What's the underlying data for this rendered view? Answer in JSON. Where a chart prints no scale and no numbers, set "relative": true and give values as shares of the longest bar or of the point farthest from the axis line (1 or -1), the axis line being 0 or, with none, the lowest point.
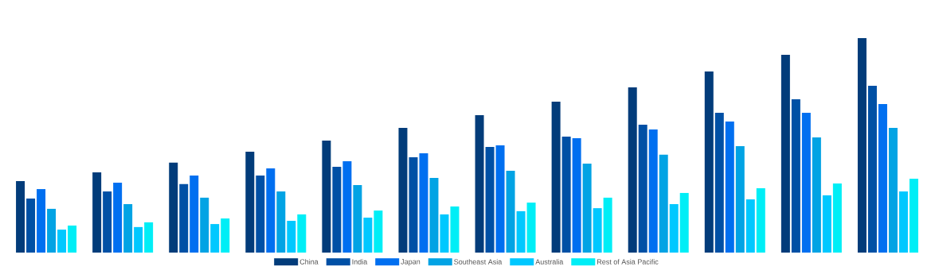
{
  "chart_data": {
    "type": "bar",
    "relative": true,
    "legend": "bottom",
    "categories": [
      null,
      null,
      null,
      null,
      null,
      null,
      null,
      null,
      null,
      null,
      null,
      null
    ],
    "series": [
      {
        "name": "China",
        "color": "#023c7a",
        "values": [
          0.333,
          0.374,
          0.419,
          0.47,
          0.522,
          0.581,
          0.641,
          0.704,
          0.77,
          0.844,
          0.922,
          1
        ]
      },
      {
        "name": "India",
        "color": "#0050a5",
        "values": [
          0.252,
          0.285,
          0.319,
          0.359,
          0.4,
          0.444,
          0.493,
          0.541,
          0.596,
          0.652,
          0.715,
          0.778
        ]
      },
      {
        "name": "Japan",
        "color": "#006ff0",
        "values": [
          0.296,
          0.326,
          0.359,
          0.393,
          0.426,
          0.463,
          0.5,
          0.533,
          0.574,
          0.611,
          0.652,
          0.693
        ]
      },
      {
        "name": "Southeast Asia",
        "color": "#02a3e4",
        "values": [
          0.204,
          0.226,
          0.256,
          0.285,
          0.315,
          0.348,
          0.381,
          0.415,
          0.456,
          0.496,
          0.537,
          0.581
        ]
      },
      {
        "name": "Australia",
        "color": "#00c8ff",
        "values": [
          0.107,
          0.119,
          0.133,
          0.148,
          0.163,
          0.178,
          0.193,
          0.207,
          0.226,
          0.248,
          0.267,
          0.285
        ]
      },
      {
        "name": "Rest of Asia Pacific",
        "color": "#00eef6",
        "values": [
          0.126,
          0.141,
          0.159,
          0.178,
          0.196,
          0.215,
          0.233,
          0.256,
          0.278,
          0.3,
          0.322,
          0.344
        ]
      }
    ]
  }
}
